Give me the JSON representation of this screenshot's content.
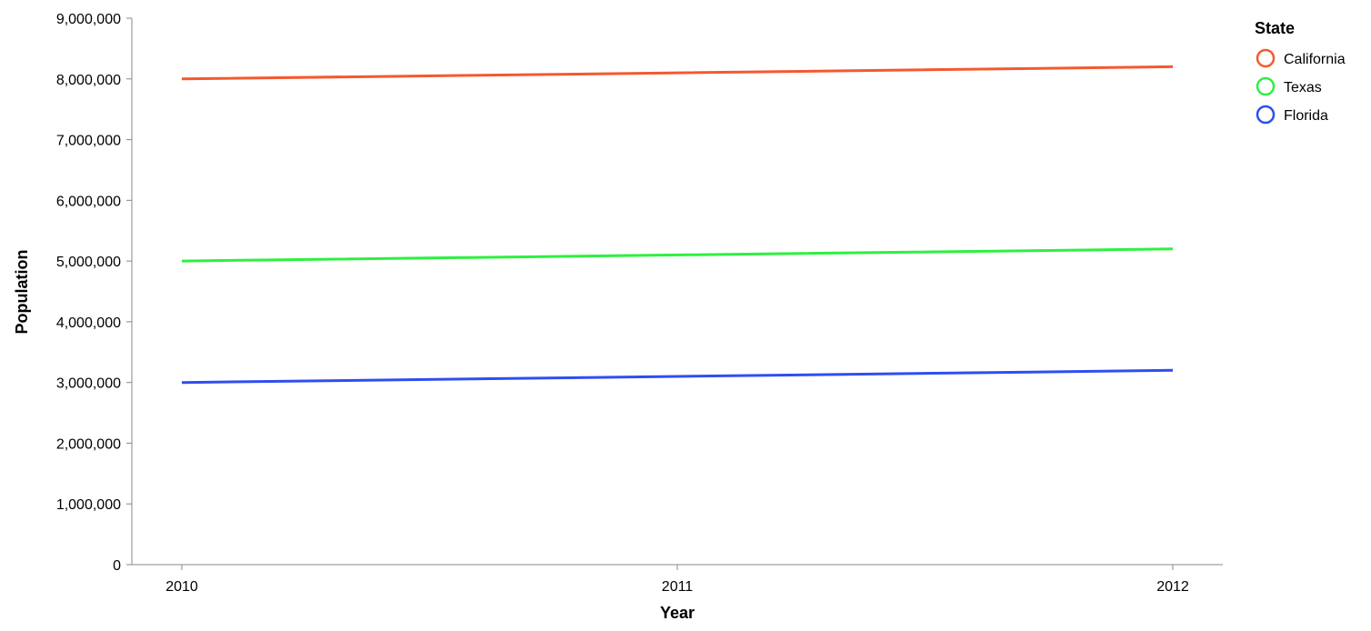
{
  "chart_data": {
    "type": "line",
    "title": "",
    "xlabel": "Year",
    "ylabel": "Population",
    "x": [
      "2010",
      "2011",
      "2012"
    ],
    "ylim": [
      0,
      9000000
    ],
    "yticks": [
      0,
      1000000,
      2000000,
      3000000,
      4000000,
      5000000,
      6000000,
      7000000,
      8000000,
      9000000
    ],
    "ytick_labels": [
      "0",
      "1,000,000",
      "2,000,000",
      "3,000,000",
      "4,000,000",
      "5,000,000",
      "6,000,000",
      "7,000,000",
      "8,000,000",
      "9,000,000"
    ],
    "grid": false,
    "legend": {
      "title": "State",
      "placement": "top-right"
    },
    "series": [
      {
        "name": "California",
        "color": "#f4592f",
        "values": [
          8000000,
          8100000,
          8200000
        ]
      },
      {
        "name": "Texas",
        "color": "#2ef040",
        "values": [
          5000000,
          5100000,
          5200000
        ]
      },
      {
        "name": "Florida",
        "color": "#2f4ef0",
        "values": [
          3000000,
          3100000,
          3200000
        ]
      }
    ]
  }
}
